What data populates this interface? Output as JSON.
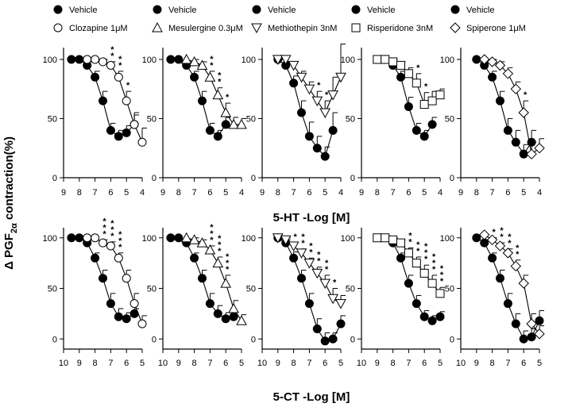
{
  "figure": {
    "ylabel_main": "Δ PGF",
    "ylabel_sub": "2α",
    "ylabel_suffix": " contraction(%)"
  },
  "chart_data": [
    {
      "type": "line",
      "row": 0,
      "col": 0,
      "legend": {
        "vehicle": "Vehicle",
        "drug": "Clozapine 1μM"
      },
      "drug_marker": "circle-open",
      "xlabel": "5-HT -Log [M]",
      "xlim": [
        9,
        4
      ],
      "xticks": [
        9,
        8,
        7,
        6,
        5,
        4
      ],
      "ylim": [
        0,
        110
      ],
      "yticks": [
        0,
        50,
        100
      ],
      "series": [
        {
          "name": "Vehicle",
          "marker": "circle-filled",
          "x": [
            8.5,
            8,
            7.5,
            7,
            6.5,
            6,
            5.5,
            5,
            4.5
          ],
          "y": [
            100,
            100,
            95,
            85,
            65,
            40,
            35,
            38,
            45
          ],
          "err": [
            0,
            0,
            3,
            5,
            8,
            6,
            5,
            6,
            8
          ]
        },
        {
          "name": "Clozapine 1μM",
          "marker": "circle-open",
          "x": [
            7.5,
            7,
            6.5,
            6,
            5.5,
            5,
            4.5,
            4
          ],
          "y": [
            100,
            100,
            98,
            95,
            85,
            65,
            45,
            30
          ],
          "err": [
            0,
            0,
            2,
            3,
            5,
            8,
            10,
            12
          ],
          "stars": [
            [
              "6",
              2
            ],
            [
              "5.5",
              2
            ],
            [
              "5",
              1
            ]
          ]
        }
      ]
    },
    {
      "type": "line",
      "row": 0,
      "col": 1,
      "legend": {
        "vehicle": "Vehicle",
        "drug": "Mesulergine 0.3μM"
      },
      "drug_marker": "triangle-up",
      "xlabel": "",
      "xlim": [
        9,
        4
      ],
      "xticks": [
        9,
        8,
        7,
        6,
        5,
        4
      ],
      "ylim": [
        0,
        110
      ],
      "yticks": [
        0,
        50,
        100
      ],
      "series": [
        {
          "name": "Vehicle",
          "marker": "circle-filled",
          "x": [
            8.5,
            8,
            7.5,
            7,
            6.5,
            6,
            5.5,
            5
          ],
          "y": [
            100,
            100,
            95,
            85,
            65,
            40,
            35,
            45
          ],
          "err": [
            0,
            0,
            3,
            5,
            8,
            6,
            5,
            6
          ]
        },
        {
          "name": "Mesulergine 0.3μM",
          "marker": "triangle-up",
          "x": [
            7.5,
            7,
            6.5,
            6,
            5.5,
            5,
            4.5,
            4
          ],
          "y": [
            100,
            98,
            95,
            85,
            70,
            55,
            45,
            45
          ],
          "err": [
            0,
            2,
            3,
            5,
            6,
            8,
            6,
            5
          ],
          "stars": [
            [
              "6",
              2
            ],
            [
              "5.5",
              2
            ],
            [
              "5",
              1
            ]
          ]
        }
      ]
    },
    {
      "type": "line",
      "row": 0,
      "col": 2,
      "legend": {
        "vehicle": "Vehicle",
        "drug": "Methiothepin 3nM"
      },
      "drug_marker": "triangle-down",
      "xlabel": "",
      "xlim": [
        9,
        4
      ],
      "xticks": [
        9,
        8,
        7,
        6,
        5,
        4
      ],
      "ylim": [
        0,
        110
      ],
      "yticks": [
        0,
        50,
        100
      ],
      "series": [
        {
          "name": "Vehicle",
          "marker": "circle-filled",
          "x": [
            8,
            7.5,
            7,
            6.5,
            6,
            5.5,
            5,
            4.5
          ],
          "y": [
            100,
            95,
            80,
            55,
            35,
            25,
            18,
            40
          ],
          "err": [
            0,
            3,
            6,
            10,
            12,
            10,
            8,
            15
          ]
        },
        {
          "name": "Methiothepin 3nM",
          "marker": "triangle-down",
          "x": [
            8,
            7.5,
            7,
            6.5,
            6,
            5.5,
            5,
            4.5,
            4
          ],
          "y": [
            100,
            100,
            95,
            85,
            75,
            65,
            55,
            70,
            85
          ],
          "err": [
            0,
            0,
            3,
            5,
            6,
            8,
            10,
            15,
            28
          ],
          "stars": [
            [
              "5.5",
              1
            ],
            [
              "5",
              1
            ]
          ]
        }
      ]
    },
    {
      "type": "line",
      "row": 0,
      "col": 3,
      "legend": {
        "vehicle": "Vehicle",
        "drug": "Risperidone 3nM"
      },
      "drug_marker": "square-open",
      "xlabel": "",
      "xlim": [
        9,
        4
      ],
      "xticks": [
        9,
        8,
        7,
        6,
        5,
        4
      ],
      "ylim": [
        0,
        110
      ],
      "yticks": [
        0,
        50,
        100
      ],
      "series": [
        {
          "name": "Vehicle",
          "marker": "circle-filled",
          "x": [
            7.5,
            7,
            6.5,
            6,
            5.5,
            5,
            4.5
          ],
          "y": [
            100,
            95,
            85,
            60,
            40,
            35,
            45
          ],
          "err": [
            0,
            3,
            5,
            8,
            6,
            5,
            6
          ]
        },
        {
          "name": "Risperidone 3nM",
          "marker": "square-open",
          "x": [
            8,
            7.5,
            7,
            6.5,
            6,
            5.5,
            5,
            4.5,
            4
          ],
          "y": [
            100,
            100,
            98,
            95,
            88,
            80,
            62,
            65,
            70
          ],
          "err": [
            0,
            0,
            2,
            3,
            5,
            8,
            10,
            8,
            5
          ],
          "stars": [
            [
              "5.5",
              1
            ],
            [
              "5",
              1
            ]
          ]
        }
      ]
    },
    {
      "type": "line",
      "row": 0,
      "col": 4,
      "legend": {
        "vehicle": "Vehicle",
        "drug": "Spiperone 1μM"
      },
      "drug_marker": "diamond-open",
      "xlabel": "",
      "xlim": [
        9,
        4
      ],
      "xticks": [
        9,
        8,
        7,
        6,
        5,
        4
      ],
      "ylim": [
        0,
        110
      ],
      "yticks": [
        0,
        50,
        100
      ],
      "series": [
        {
          "name": "Vehicle",
          "marker": "circle-filled",
          "x": [
            8,
            7.5,
            7,
            6.5,
            6,
            5.5,
            5,
            4.5
          ],
          "y": [
            100,
            95,
            85,
            65,
            40,
            30,
            20,
            30
          ],
          "err": [
            0,
            3,
            5,
            8,
            10,
            10,
            8,
            10
          ]
        },
        {
          "name": "Spiperone 1μM",
          "marker": "diamond-open",
          "x": [
            7.5,
            7,
            6.5,
            6,
            5.5,
            5,
            4.5,
            4
          ],
          "y": [
            100,
            98,
            95,
            88,
            75,
            55,
            20,
            25
          ],
          "err": [
            0,
            2,
            3,
            5,
            6,
            10,
            10,
            8
          ],
          "stars": [
            [
              "5",
              1
            ]
          ]
        }
      ]
    },
    {
      "type": "line",
      "row": 1,
      "col": 0,
      "legend": null,
      "drug_marker": "circle-open",
      "xlabel": "5-CT -Log [M]",
      "xlim": [
        10,
        5
      ],
      "xticks": [
        10,
        9,
        8,
        7,
        6,
        5
      ],
      "ylim": [
        -10,
        110
      ],
      "yticks": [
        0,
        50,
        100
      ],
      "series": [
        {
          "name": "Vehicle",
          "marker": "circle-filled",
          "x": [
            9.5,
            9,
            8.5,
            8,
            7.5,
            7,
            6.5,
            6,
            5.5
          ],
          "y": [
            100,
            100,
            95,
            80,
            60,
            35,
            22,
            20,
            25
          ],
          "err": [
            0,
            0,
            3,
            5,
            8,
            10,
            8,
            6,
            5
          ]
        },
        {
          "name": "Clozapine 1μM",
          "marker": "circle-open",
          "x": [
            8.5,
            8,
            7.5,
            7,
            6.5,
            6,
            5.5,
            5
          ],
          "y": [
            100,
            100,
            95,
            92,
            80,
            60,
            35,
            15
          ],
          "err": [
            0,
            0,
            3,
            4,
            5,
            8,
            10,
            8
          ],
          "stars": [
            [
              "7.5",
              3
            ],
            [
              "7",
              3
            ],
            [
              "6.5",
              3
            ]
          ]
        }
      ]
    },
    {
      "type": "line",
      "row": 1,
      "col": 1,
      "legend": null,
      "drug_marker": "triangle-up",
      "xlabel": "",
      "xlim": [
        10,
        5
      ],
      "xticks": [
        10,
        9,
        8,
        7,
        6,
        5
      ],
      "ylim": [
        -10,
        110
      ],
      "yticks": [
        0,
        50,
        100
      ],
      "series": [
        {
          "name": "Vehicle",
          "marker": "circle-filled",
          "x": [
            9.5,
            9,
            8.5,
            8,
            7.5,
            7,
            6.5,
            6,
            5.5
          ],
          "y": [
            100,
            100,
            95,
            80,
            60,
            35,
            25,
            20,
            22
          ],
          "err": [
            0,
            0,
            3,
            5,
            8,
            10,
            8,
            6,
            5
          ]
        },
        {
          "name": "Mesulergine 0.3μM",
          "marker": "triangle-up",
          "x": [
            8.5,
            8,
            7.5,
            7,
            6.5,
            6,
            5.5,
            5
          ],
          "y": [
            100,
            98,
            95,
            88,
            75,
            55,
            30,
            18
          ],
          "err": [
            0,
            2,
            3,
            4,
            6,
            8,
            8,
            6
          ],
          "stars": [
            [
              "7",
              3
            ],
            [
              "6.5",
              3
            ],
            [
              "6",
              3
            ]
          ]
        }
      ]
    },
    {
      "type": "line",
      "row": 1,
      "col": 2,
      "legend": null,
      "drug_marker": "triangle-down",
      "xlabel": "",
      "xlim": [
        10,
        5
      ],
      "xticks": [
        10,
        9,
        8,
        7,
        6,
        5
      ],
      "ylim": [
        -10,
        110
      ],
      "yticks": [
        0,
        50,
        100
      ],
      "series": [
        {
          "name": "Vehicle",
          "marker": "circle-filled",
          "x": [
            9,
            8.5,
            8,
            7.5,
            7,
            6.5,
            6,
            5.5,
            5
          ],
          "y": [
            100,
            95,
            80,
            60,
            35,
            10,
            -2,
            0,
            15
          ],
          "err": [
            0,
            3,
            6,
            8,
            10,
            10,
            8,
            6,
            8
          ]
        },
        {
          "name": "Methiothepin 3nM",
          "marker": "triangle-down",
          "x": [
            9,
            8.5,
            8,
            7.5,
            7,
            6.5,
            6,
            5.5,
            5
          ],
          "y": [
            100,
            98,
            92,
            85,
            75,
            65,
            55,
            40,
            35
          ],
          "err": [
            0,
            2,
            3,
            4,
            5,
            6,
            8,
            10,
            8
          ],
          "stars": [
            [
              "8",
              1
            ],
            [
              "7.5",
              2
            ],
            [
              "7",
              2
            ],
            [
              "6.5",
              2
            ],
            [
              "6",
              2
            ],
            [
              "5.5",
              1
            ]
          ]
        }
      ]
    },
    {
      "type": "line",
      "row": 1,
      "col": 3,
      "legend": null,
      "drug_marker": "square-open",
      "xlabel": "",
      "xlim": [
        10,
        5
      ],
      "xticks": [
        10,
        9,
        8,
        7,
        6,
        5
      ],
      "ylim": [
        -10,
        110
      ],
      "yticks": [
        0,
        50,
        100
      ],
      "series": [
        {
          "name": "Vehicle",
          "marker": "circle-filled",
          "x": [
            8,
            7.5,
            7,
            6.5,
            6,
            5.5,
            5
          ],
          "y": [
            95,
            80,
            55,
            35,
            22,
            18,
            22
          ],
          "err": [
            3,
            5,
            8,
            8,
            6,
            5,
            5
          ]
        },
        {
          "name": "Risperidone 3nM",
          "marker": "square-open",
          "x": [
            9,
            8.5,
            8,
            7.5,
            7,
            6.5,
            6,
            5.5,
            5
          ],
          "y": [
            100,
            100,
            98,
            95,
            85,
            75,
            65,
            55,
            45
          ],
          "err": [
            0,
            0,
            2,
            3,
            5,
            6,
            8,
            8,
            6
          ],
          "stars": [
            [
              "7",
              2
            ],
            [
              "6.5",
              2
            ],
            [
              "6",
              3
            ],
            [
              "5.5",
              3
            ],
            [
              "5",
              3
            ]
          ]
        }
      ]
    },
    {
      "type": "line",
      "row": 1,
      "col": 4,
      "legend": null,
      "drug_marker": "diamond-open",
      "xlabel": "",
      "xlim": [
        10,
        5
      ],
      "xticks": [
        10,
        9,
        8,
        7,
        6,
        5
      ],
      "ylim": [
        -10,
        110
      ],
      "yticks": [
        0,
        50,
        100
      ],
      "series": [
        {
          "name": "Vehicle",
          "marker": "circle-filled",
          "x": [
            9,
            8.5,
            8,
            7.5,
            7,
            6.5,
            6,
            5.5,
            5
          ],
          "y": [
            100,
            95,
            80,
            60,
            35,
            15,
            0,
            2,
            18
          ],
          "err": [
            0,
            3,
            5,
            8,
            10,
            10,
            8,
            8,
            10
          ]
        },
        {
          "name": "Spiperone 1μM",
          "marker": "diamond-open",
          "x": [
            8.5,
            8,
            7.5,
            7,
            6.5,
            6,
            5.5,
            5
          ],
          "y": [
            103,
            98,
            92,
            85,
            72,
            55,
            15,
            5
          ],
          "err": [
            0,
            2,
            3,
            4,
            6,
            8,
            10,
            8
          ],
          "stars": [
            [
              "8",
              1
            ],
            [
              "7.5",
              2
            ],
            [
              "7",
              2
            ],
            [
              "6.5",
              2
            ]
          ]
        }
      ]
    }
  ]
}
